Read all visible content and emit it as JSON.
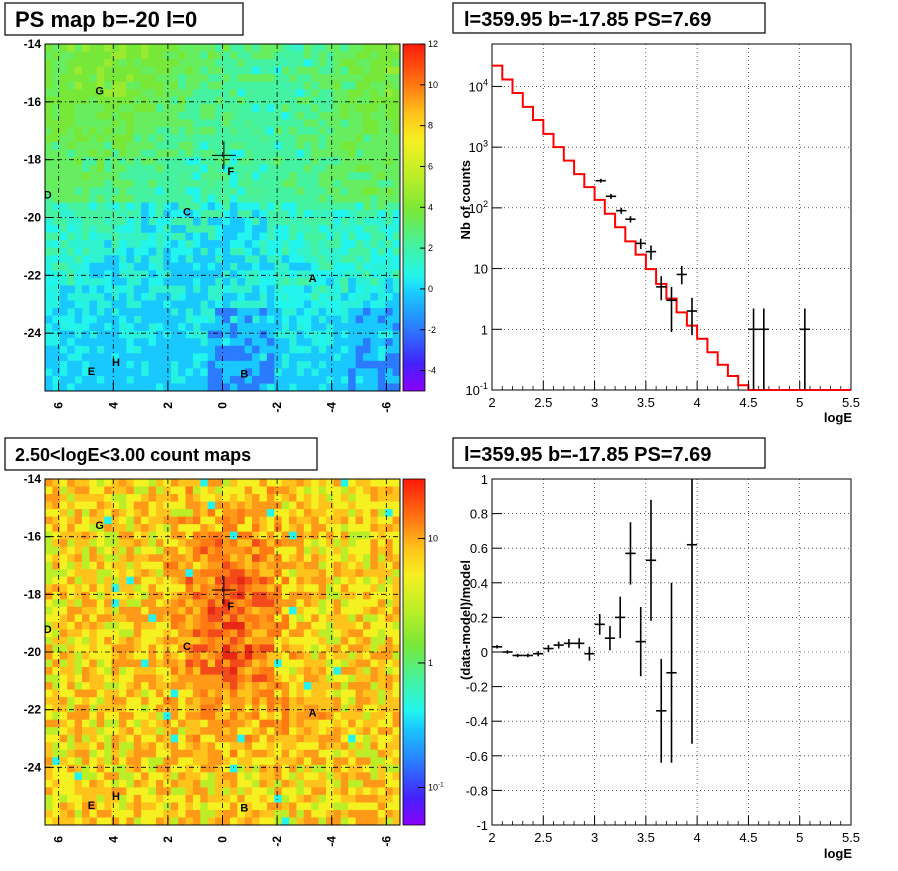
{
  "panels": {
    "ps_map": {
      "title": "PS map b=-20 l=0",
      "x_ticks": [
        "6",
        "4",
        "2",
        "0",
        "-2",
        "-4",
        "-6"
      ],
      "y_ticks": [
        "-14",
        "-16",
        "-18",
        "-20",
        "-22",
        "-24"
      ],
      "palette_ticks": [
        "12",
        "10",
        "8",
        "6",
        "4",
        "2",
        "0",
        "-2",
        "-4"
      ],
      "sources": [
        {
          "label": "G",
          "l": 4.5,
          "b": -15.6
        },
        {
          "label": "F",
          "l": -0.3,
          "b": -18.4
        },
        {
          "label": "D",
          "l": 6.4,
          "b": -19.2
        },
        {
          "label": "C",
          "l": 1.3,
          "b": -19.8
        },
        {
          "label": "A",
          "l": -3.3,
          "b": -22.1
        },
        {
          "label": "H",
          "l": 3.9,
          "b": -25.0
        },
        {
          "label": "E",
          "l": 4.8,
          "b": -25.3
        },
        {
          "label": "B",
          "l": -0.8,
          "b": -25.4
        }
      ],
      "marker": {
        "l": -0.05,
        "b": -17.85
      }
    },
    "spectrum": {
      "title": "l=359.95 b=-17.85 PS=7.69",
      "xlabel": "logE",
      "ylabel": "Nb of counts",
      "x_ticks": [
        "2",
        "2.5",
        "3",
        "3.5",
        "4",
        "4.5",
        "5",
        "5.5"
      ],
      "y_ticks": [
        {
          "base": "10",
          "exp": "-1"
        },
        {
          "base": "1",
          "exp": ""
        },
        {
          "base": "10",
          "exp": ""
        },
        {
          "base": "10",
          "exp": "2"
        },
        {
          "base": "10",
          "exp": "3"
        },
        {
          "base": "10",
          "exp": "4"
        }
      ]
    },
    "count_map": {
      "title": "2.50<logE<3.00 count maps",
      "x_ticks": [
        "6",
        "4",
        "2",
        "0",
        "-2",
        "-4",
        "-6"
      ],
      "y_ticks": [
        "-14",
        "-16",
        "-18",
        "-20",
        "-22",
        "-24"
      ],
      "palette_ticks": [
        {
          "base": "10",
          "exp": ""
        },
        {
          "base": "1",
          "exp": ""
        },
        {
          "base": "10",
          "exp": "-1"
        }
      ]
    },
    "residuals": {
      "title": "l=359.95 b=-17.85 PS=7.69",
      "xlabel": "logE",
      "ylabel": "(data-model)/model",
      "x_ticks": [
        "2",
        "2.5",
        "3",
        "3.5",
        "4",
        "4.5",
        "5",
        "5.5"
      ],
      "y_ticks": [
        "1",
        "0.8",
        "0.6",
        "0.4",
        "0.2",
        "0",
        "-0.2",
        "-0.4",
        "-0.6",
        "-0.8",
        "-1"
      ]
    }
  },
  "colors": {
    "model_line": "#ff0000",
    "data_points": "#000000",
    "grid": "#000000"
  },
  "chart_data": [
    {
      "type": "heatmap",
      "title": "PS map b=-20 l=0",
      "xlim": [
        6.5,
        -6.5
      ],
      "ylim": [
        -26,
        -14
      ],
      "zlim": [
        -5,
        12
      ],
      "grid": true,
      "description_values": "Smooth PS significance map, mostly 0-6 (cyan/green), low values (blue) near bottom"
    },
    {
      "type": "line",
      "title": "l=359.95 b=-17.85 PS=7.69",
      "xlabel": "logE",
      "ylabel": "Nb of counts",
      "xlim": [
        2,
        5.5
      ],
      "ylim": [
        0.1,
        50000
      ],
      "y_scale": "log",
      "grid": true,
      "series": [
        {
          "kind": "step",
          "x_edges": [
            2.0,
            2.1,
            2.2,
            2.3,
            2.4,
            2.5,
            2.6,
            2.7,
            2.8,
            2.9,
            3.0,
            3.1,
            3.2,
            3.3,
            3.4,
            3.5,
            3.6,
            3.7,
            3.8,
            3.9,
            4.0,
            4.1,
            4.2,
            4.3,
            4.4,
            4.5,
            4.6,
            4.7,
            4.8,
            4.9,
            5.0,
            5.1,
            5.2,
            5.3,
            5.4,
            5.5
          ],
          "values": [
            22000,
            13000,
            7800,
            4600,
            2800,
            1650,
            1000,
            600,
            360,
            220,
            135,
            80,
            48,
            28,
            17,
            9.8,
            5.6,
            3.2,
            1.9,
            1.15,
            0.7,
            0.42,
            0.26,
            0.17,
            0.12,
            0.1,
            0.1,
            0.1,
            0.1,
            0.1,
            0.1,
            0.1,
            0.1,
            0.1,
            0.1
          ]
        },
        {
          "kind": "errorbars",
          "points": [
            {
              "x": 3.06,
              "y": 280,
              "lo": 260,
              "hi": 300,
              "xerr": 0.05
            },
            {
              "x": 3.16,
              "y": 155,
              "lo": 140,
              "hi": 170,
              "xerr": 0.05
            },
            {
              "x": 3.26,
              "y": 90,
              "lo": 80,
              "hi": 100,
              "xerr": 0.05
            },
            {
              "x": 3.35,
              "y": 65,
              "lo": 57,
              "hi": 73,
              "xerr": 0.05
            },
            {
              "x": 3.45,
              "y": 26,
              "lo": 21,
              "hi": 31,
              "xerr": 0.05
            },
            {
              "x": 3.55,
              "y": 19,
              "lo": 14,
              "hi": 24,
              "xerr": 0.05
            },
            {
              "x": 3.65,
              "y": 5,
              "lo": 3,
              "hi": 7.5,
              "xerr": 0.05
            },
            {
              "x": 3.75,
              "y": 3,
              "lo": 0.9,
              "hi": 5,
              "xerr": 0.05
            },
            {
              "x": 3.85,
              "y": 8,
              "lo": 5.5,
              "hi": 11,
              "xerr": 0.05
            },
            {
              "x": 3.95,
              "y": 2,
              "lo": 0.8,
              "hi": 3.3,
              "xerr": 0.05
            },
            {
              "x": 4.55,
              "y": 1,
              "lo": 0.1,
              "hi": 2.2,
              "xerr": 0.05
            },
            {
              "x": 4.65,
              "y": 1,
              "lo": 0.1,
              "hi": 2.2,
              "xerr": 0.05
            },
            {
              "x": 5.05,
              "y": 1,
              "lo": 0.1,
              "hi": 2.2,
              "xerr": 0.05
            }
          ]
        }
      ]
    },
    {
      "type": "heatmap",
      "title": "2.50<logE<3.00 count maps",
      "xlim": [
        6.5,
        -6.5
      ],
      "ylim": [
        -26,
        -14
      ],
      "z_scale": "log",
      "zlim": [
        0.05,
        30
      ],
      "grid": true
    },
    {
      "type": "scatter",
      "title": "l=359.95 b=-17.85 PS=7.69",
      "xlabel": "logE",
      "ylabel": "(data-model)/model",
      "xlim": [
        2,
        5.5
      ],
      "ylim": [
        -1,
        1
      ],
      "grid": true,
      "points": [
        {
          "x": 2.05,
          "y": 0.03,
          "err": 0.01
        },
        {
          "x": 2.15,
          "y": 0.0,
          "err": 0.01
        },
        {
          "x": 2.25,
          "y": -0.02,
          "err": 0.01
        },
        {
          "x": 2.35,
          "y": -0.02,
          "err": 0.01
        },
        {
          "x": 2.45,
          "y": -0.01,
          "err": 0.015
        },
        {
          "x": 2.55,
          "y": 0.02,
          "err": 0.02
        },
        {
          "x": 2.65,
          "y": 0.04,
          "err": 0.02
        },
        {
          "x": 2.75,
          "y": 0.05,
          "err": 0.025
        },
        {
          "x": 2.85,
          "y": 0.05,
          "err": 0.03
        },
        {
          "x": 2.95,
          "y": -0.01,
          "err": 0.04
        },
        {
          "x": 3.05,
          "y": 0.16,
          "err": 0.06
        },
        {
          "x": 3.15,
          "y": 0.08,
          "err": 0.07
        },
        {
          "x": 3.25,
          "y": 0.2,
          "err": 0.12
        },
        {
          "x": 3.35,
          "y": 0.57,
          "err": 0.18
        },
        {
          "x": 3.45,
          "y": 0.06,
          "err": 0.2
        },
        {
          "x": 3.55,
          "y": 0.53,
          "err": 0.35
        },
        {
          "x": 3.65,
          "y": -0.34,
          "err": 0.3
        },
        {
          "x": 3.75,
          "y": -0.12,
          "err": 0.52
        },
        {
          "x": 3.95,
          "y": 0.62,
          "err": 1.15
        }
      ]
    }
  ]
}
